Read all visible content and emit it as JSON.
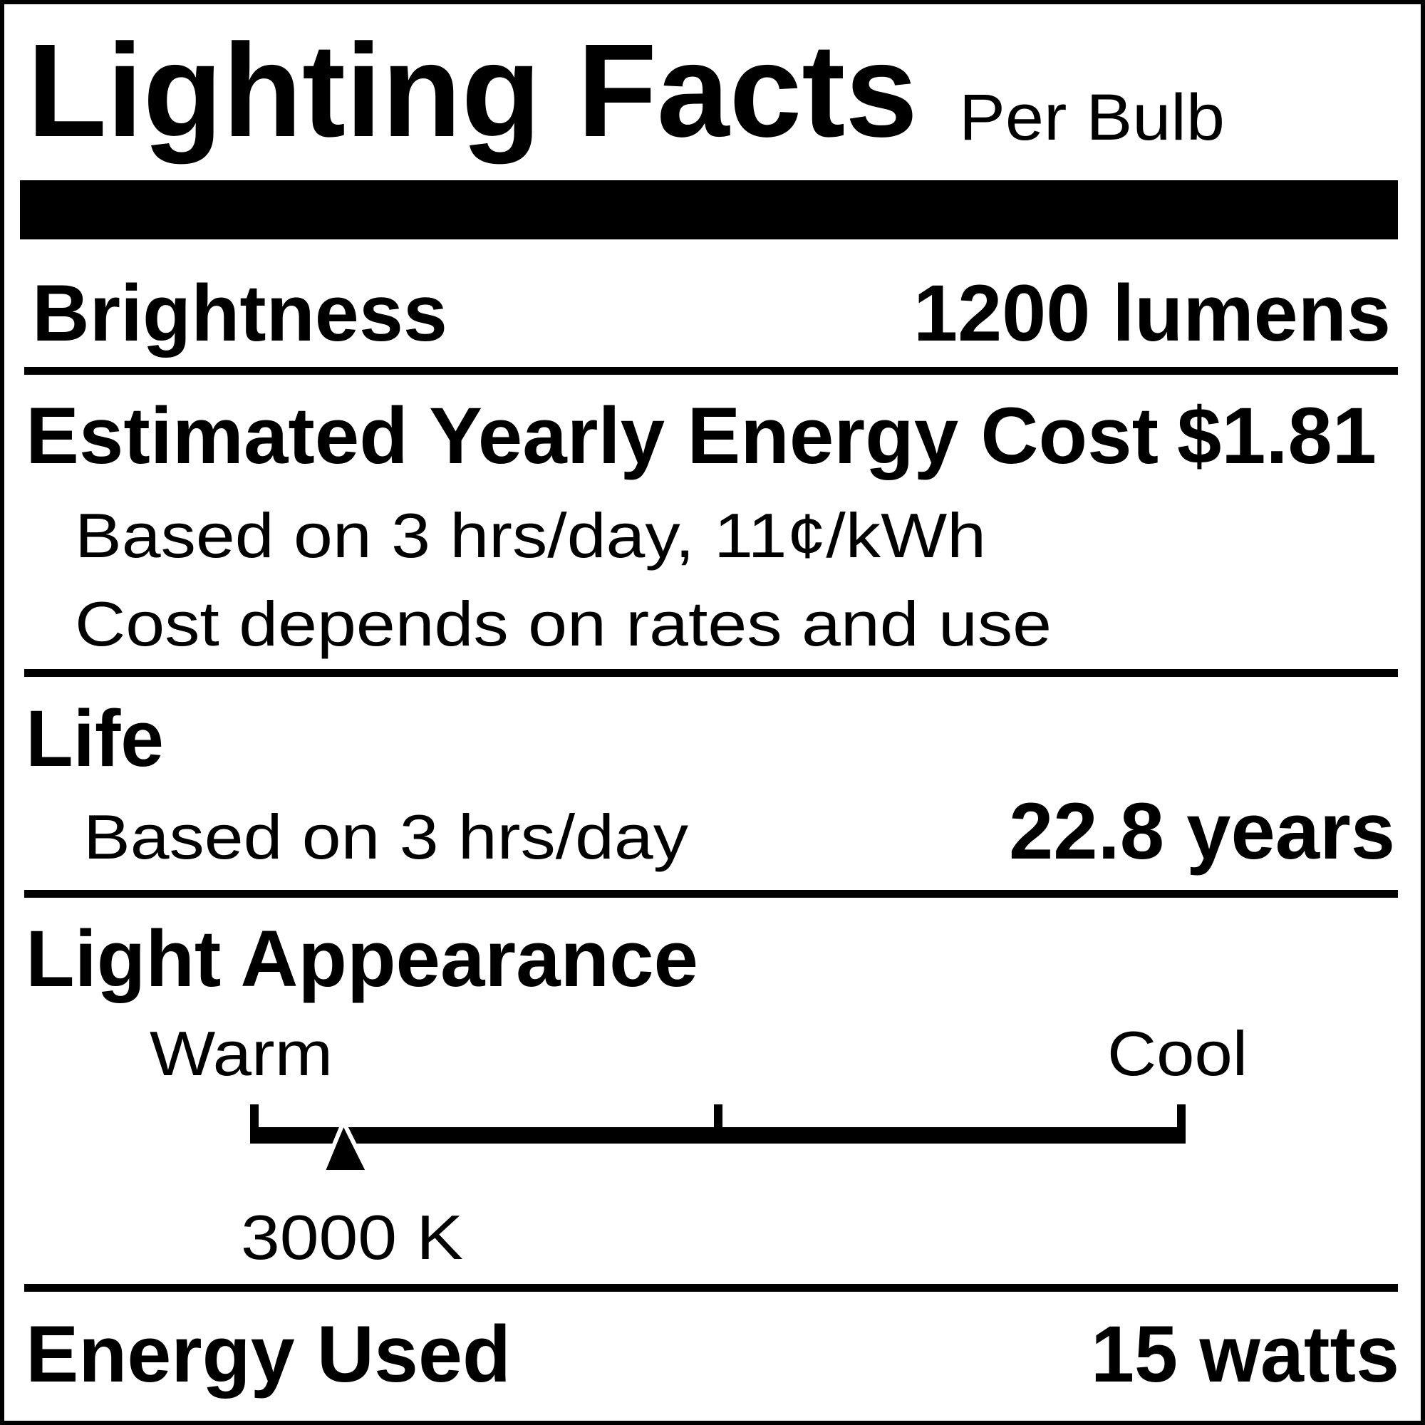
{
  "header": {
    "title": "Lighting Facts",
    "subtitle": "Per Bulb"
  },
  "brightness": {
    "label": "Brightness",
    "value": "1200 lumens"
  },
  "energy_cost": {
    "label": "Estimated Yearly Energy Cost",
    "value": "$1.81",
    "notes": [
      "Based on 3 hrs/day, 11¢/kWh",
      "Cost depends on rates and use"
    ]
  },
  "life": {
    "label": "Life",
    "note": "Based on 3 hrs/day",
    "value": "22.8 years"
  },
  "light_appearance": {
    "label": "Light Appearance",
    "scale_low": "Warm",
    "scale_high": "Cool",
    "value": "3000 K"
  },
  "energy_used": {
    "label": "Energy Used",
    "value": "15 watts"
  }
}
